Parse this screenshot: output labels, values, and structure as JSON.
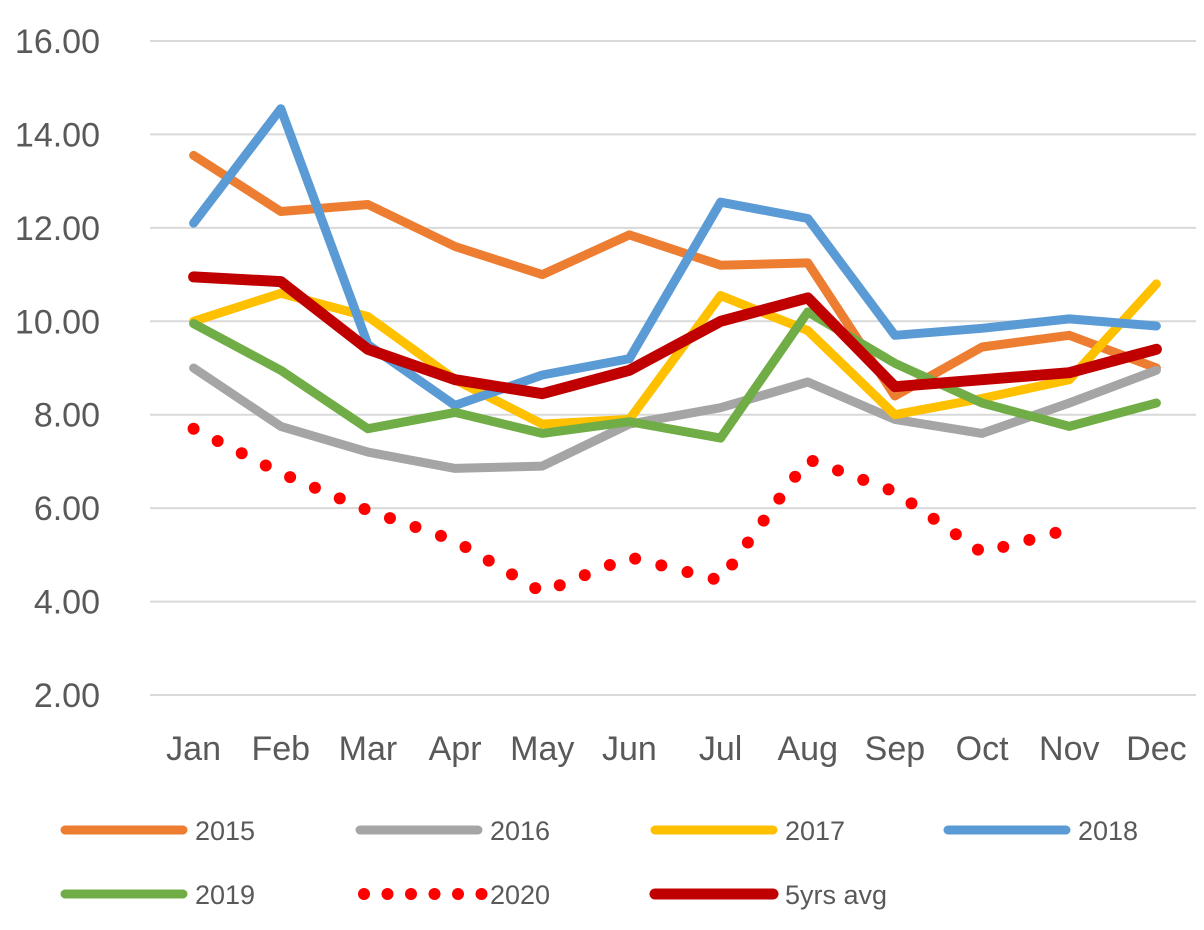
{
  "chart_data": {
    "type": "line",
    "title": "",
    "xlabel": "",
    "ylabel": "",
    "categories": [
      "Jan",
      "Feb",
      "Mar",
      "Apr",
      "May",
      "Jun",
      "Jul",
      "Aug",
      "Sep",
      "Oct",
      "Nov",
      "Dec"
    ],
    "ylim": [
      2,
      16
    ],
    "yticks": [
      "2.00",
      "4.00",
      "6.00",
      "8.00",
      "10.00",
      "12.00",
      "14.00",
      "16.00"
    ],
    "grid": true,
    "legend_position": "bottom",
    "series": [
      {
        "name": "2015",
        "color": "#ED7D31",
        "style": "solid",
        "values": [
          13.55,
          12.35,
          12.5,
          11.6,
          11.0,
          11.85,
          11.2,
          11.25,
          8.4,
          9.45,
          9.7,
          9.0
        ]
      },
      {
        "name": "2016",
        "color": "#A5A5A5",
        "style": "solid",
        "values": [
          9.0,
          7.75,
          7.2,
          6.85,
          6.9,
          7.8,
          8.15,
          8.7,
          7.9,
          7.6,
          8.25,
          8.95
        ]
      },
      {
        "name": "2017",
        "color": "#FFC000",
        "style": "solid",
        "values": [
          10.0,
          10.6,
          10.1,
          8.75,
          7.8,
          7.9,
          10.55,
          9.8,
          8.0,
          8.35,
          8.75,
          10.8
        ]
      },
      {
        "name": "2018",
        "color": "#5B9BD5",
        "style": "solid",
        "values": [
          12.1,
          14.55,
          9.5,
          8.2,
          8.85,
          9.2,
          12.55,
          12.2,
          9.7,
          9.85,
          10.05,
          9.9
        ]
      },
      {
        "name": "2019",
        "color": "#70AD47",
        "style": "solid",
        "values": [
          9.95,
          8.95,
          7.7,
          8.05,
          7.6,
          7.85,
          7.5,
          10.2,
          9.1,
          8.25,
          7.75,
          8.25
        ]
      },
      {
        "name": "2020",
        "color": "#FF0000",
        "style": "dotted",
        "values": [
          7.7,
          6.75,
          5.95,
          5.3,
          4.2,
          4.95,
          4.45,
          7.05,
          6.35,
          5.05,
          5.55,
          null
        ]
      },
      {
        "name": "5yrs avg",
        "color": "#C00000",
        "style": "solid",
        "values": [
          10.95,
          10.85,
          9.4,
          8.75,
          8.45,
          8.95,
          10.0,
          10.5,
          8.6,
          8.75,
          8.9,
          9.4
        ]
      }
    ]
  }
}
